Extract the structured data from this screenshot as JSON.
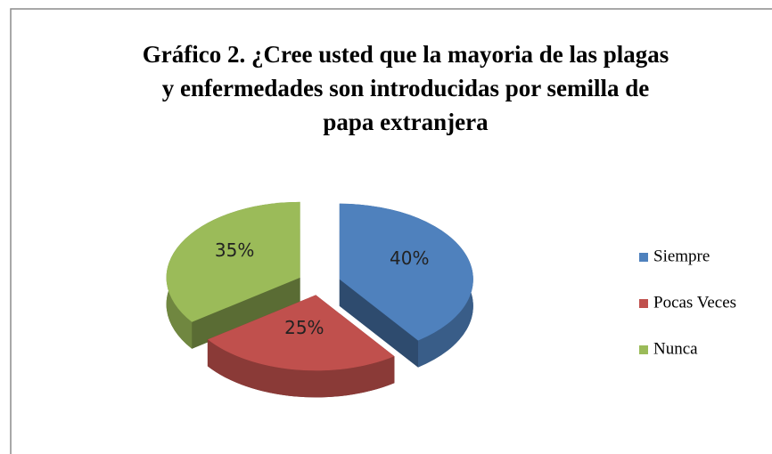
{
  "chart_data": {
    "type": "pie",
    "title": [
      "Gráfico 2. ¿Cree usted que la mayoria de las plagas",
      "y enfermedades son introducidas por semilla de",
      "papa extranjera"
    ],
    "categories": [
      "Siempre",
      "Pocas Veces",
      "Nunca"
    ],
    "values": [
      40,
      25,
      35
    ],
    "value_labels": [
      "40%",
      "25%",
      "35%"
    ],
    "colors": [
      "#4f81bd",
      "#c0504d",
      "#9bbb59"
    ],
    "legend": "right"
  }
}
